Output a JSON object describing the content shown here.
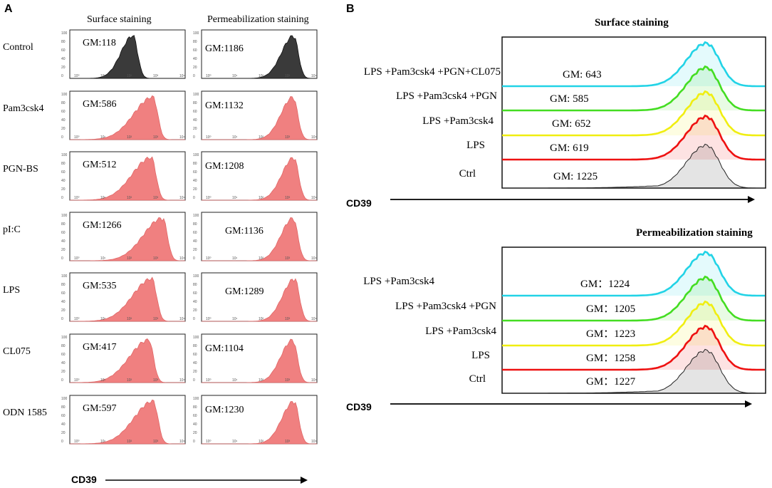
{
  "panel_a": {
    "letter": "A",
    "col_headers": [
      "Surface staining",
      "Permeabilization staining"
    ],
    "axis_label": "CD39"
  },
  "panel_b": {
    "letter": "B",
    "axis_label": "CD39"
  },
  "colors": {
    "control_fill": "#3a3a3a",
    "sample_fill": "#f08080",
    "cyan": "#22d3e6",
    "green": "#44dd22",
    "yellow": "#f0ee10",
    "red": "#ee1111",
    "black": "#222222"
  },
  "chart_data": [
    {
      "type": "histogram",
      "panel": "A",
      "title": "",
      "xlabel": "CD39",
      "x_scale": "log",
      "xlim": [
        1,
        10000
      ],
      "x_ticks": [
        "10⁰",
        "10¹",
        "10²",
        "10³",
        "10⁴"
      ],
      "y_ticks": [
        "0",
        "20",
        "40",
        "60",
        "80",
        "100"
      ],
      "columns": [
        "Surface staining",
        "Permeabilization staining"
      ],
      "rows": [
        {
          "label": "Control",
          "surface_gm": "GM:118",
          "perm_gm": "GM:1186",
          "surface_value": 118,
          "perm_value": 1186,
          "fill": "control"
        },
        {
          "label": "Pam3csk4",
          "surface_gm": "GM:586",
          "perm_gm": "GM:1132",
          "surface_value": 586,
          "perm_value": 1132,
          "fill": "sample"
        },
        {
          "label": "PGN-BS",
          "surface_gm": "GM:512",
          "perm_gm": "GM:1208",
          "surface_value": 512,
          "perm_value": 1208,
          "fill": "sample"
        },
        {
          "label": "pI:C",
          "surface_gm": "GM:1266",
          "perm_gm": "GM:1136",
          "surface_value": 1266,
          "perm_value": 1136,
          "fill": "sample"
        },
        {
          "label": "LPS",
          "surface_gm": "GM:535",
          "perm_gm": "GM:1289",
          "surface_value": 535,
          "perm_value": 1289,
          "fill": "sample"
        },
        {
          "label": "CL075",
          "surface_gm": "GM:417",
          "perm_gm": "GM:1104",
          "surface_value": 417,
          "perm_value": 1104,
          "fill": "sample"
        },
        {
          "label": "ODN 1585",
          "surface_gm": "GM:597",
          "perm_gm": "GM:1230",
          "surface_value": 597,
          "perm_value": 1230,
          "fill": "sample"
        }
      ]
    },
    {
      "type": "histogram-overlay",
      "panel": "B",
      "title": "Surface staining",
      "xlabel": "CD39",
      "series": [
        {
          "label": "LPS +Pam3csk4 +PGN+CL075",
          "gm": "GM: 643",
          "value": 643,
          "color": "cyan"
        },
        {
          "label": "LPS +Pam3csk4 +PGN",
          "gm": "GM: 585",
          "value": 585,
          "color": "green"
        },
        {
          "label": "LPS +Pam3csk4",
          "gm": "GM: 652",
          "value": 652,
          "color": "yellow"
        },
        {
          "label": "LPS",
          "gm": "GM: 619",
          "value": 619,
          "color": "red"
        },
        {
          "label": "Ctrl",
          "gm": "GM: 1225",
          "value": 1225,
          "color": "black"
        }
      ]
    },
    {
      "type": "histogram-overlay",
      "panel": "B",
      "title": "Permeabilization staining",
      "xlabel": "CD39",
      "series": [
        {
          "label": "LPS +Pam3csk4",
          "gm": "GM：1224",
          "value": 1224,
          "color": "cyan"
        },
        {
          "label": "LPS +Pam3csk4 +PGN",
          "gm": "GM：1205",
          "value": 1205,
          "color": "green"
        },
        {
          "label": "LPS +Pam3csk4",
          "gm": "GM：1223",
          "value": 1223,
          "color": "yellow"
        },
        {
          "label": "LPS",
          "gm": "GM：1258",
          "value": 1258,
          "color": "red"
        },
        {
          "label": "Ctrl",
          "gm": "GM：1227",
          "value": 1227,
          "color": "black"
        }
      ]
    }
  ]
}
